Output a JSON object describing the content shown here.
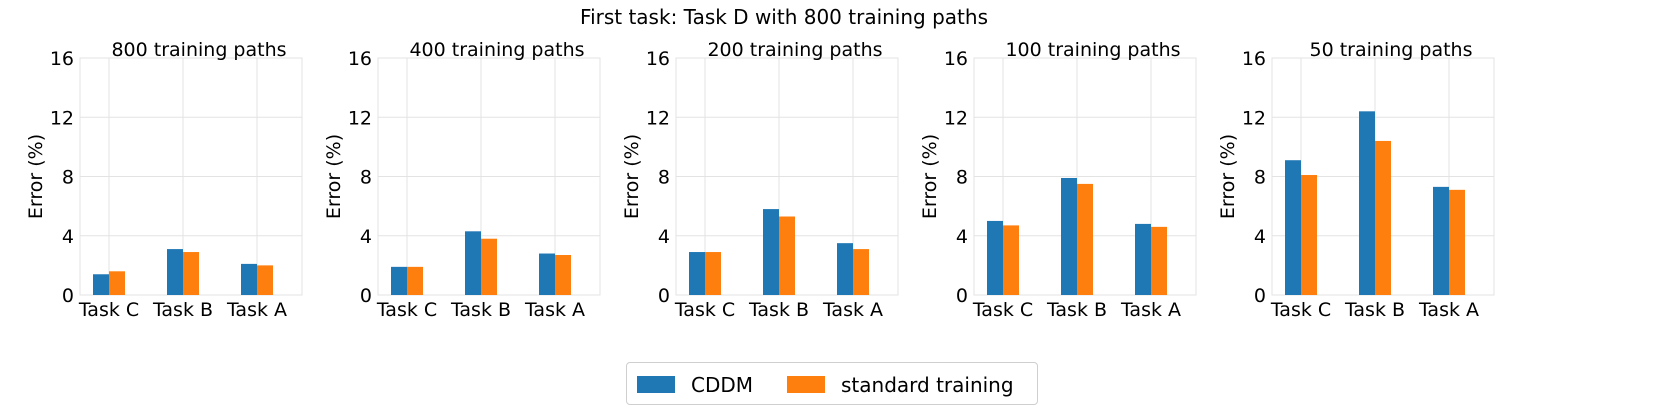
{
  "figure_title": "First task: Task D with 800 training paths",
  "colors": {
    "cddm": "#1f77b4",
    "standard": "#ff7f0e",
    "grid": "#e3e3e3"
  },
  "legend": {
    "cddm_label": "CDDM",
    "standard_label": "standard training"
  },
  "chart_data": [
    {
      "type": "bar",
      "title": "800 training paths",
      "ylabel": "Error (%)",
      "categories": [
        "Task C",
        "Task B",
        "Task A"
      ],
      "ylim": [
        0,
        16
      ],
      "yticks": [
        0,
        4,
        8,
        12,
        16
      ],
      "series": [
        {
          "name": "CDDM",
          "values": [
            1.4,
            3.1,
            2.1
          ]
        },
        {
          "name": "standard training",
          "values": [
            1.6,
            2.9,
            2.0
          ]
        }
      ]
    },
    {
      "type": "bar",
      "title": "400 training paths",
      "ylabel": "Error (%)",
      "categories": [
        "Task C",
        "Task B",
        "Task A"
      ],
      "ylim": [
        0,
        16
      ],
      "yticks": [
        0,
        4,
        8,
        12,
        16
      ],
      "series": [
        {
          "name": "CDDM",
          "values": [
            1.9,
            4.3,
            2.8
          ]
        },
        {
          "name": "standard training",
          "values": [
            1.9,
            3.8,
            2.7
          ]
        }
      ]
    },
    {
      "type": "bar",
      "title": "200 training paths",
      "ylabel": "Error (%)",
      "categories": [
        "Task C",
        "Task B",
        "Task A"
      ],
      "ylim": [
        0,
        16
      ],
      "yticks": [
        0,
        4,
        8,
        12,
        16
      ],
      "series": [
        {
          "name": "CDDM",
          "values": [
            2.9,
            5.8,
            3.5
          ]
        },
        {
          "name": "standard training",
          "values": [
            2.9,
            5.3,
            3.1
          ]
        }
      ]
    },
    {
      "type": "bar",
      "title": "100 training paths",
      "ylabel": "Error (%)",
      "categories": [
        "Task C",
        "Task B",
        "Task A"
      ],
      "ylim": [
        0,
        16
      ],
      "yticks": [
        0,
        4,
        8,
        12,
        16
      ],
      "series": [
        {
          "name": "CDDM",
          "values": [
            5.0,
            7.9,
            4.8
          ]
        },
        {
          "name": "standard training",
          "values": [
            4.7,
            7.5,
            4.6
          ]
        }
      ]
    },
    {
      "type": "bar",
      "title": "50 training paths",
      "ylabel": "Error (%)",
      "categories": [
        "Task C",
        "Task B",
        "Task A"
      ],
      "ylim": [
        0,
        16
      ],
      "yticks": [
        0,
        4,
        8,
        12,
        16
      ],
      "series": [
        {
          "name": "CDDM",
          "values": [
            9.1,
            12.4,
            7.3
          ]
        },
        {
          "name": "standard training",
          "values": [
            8.1,
            10.4,
            7.1
          ]
        }
      ]
    }
  ]
}
